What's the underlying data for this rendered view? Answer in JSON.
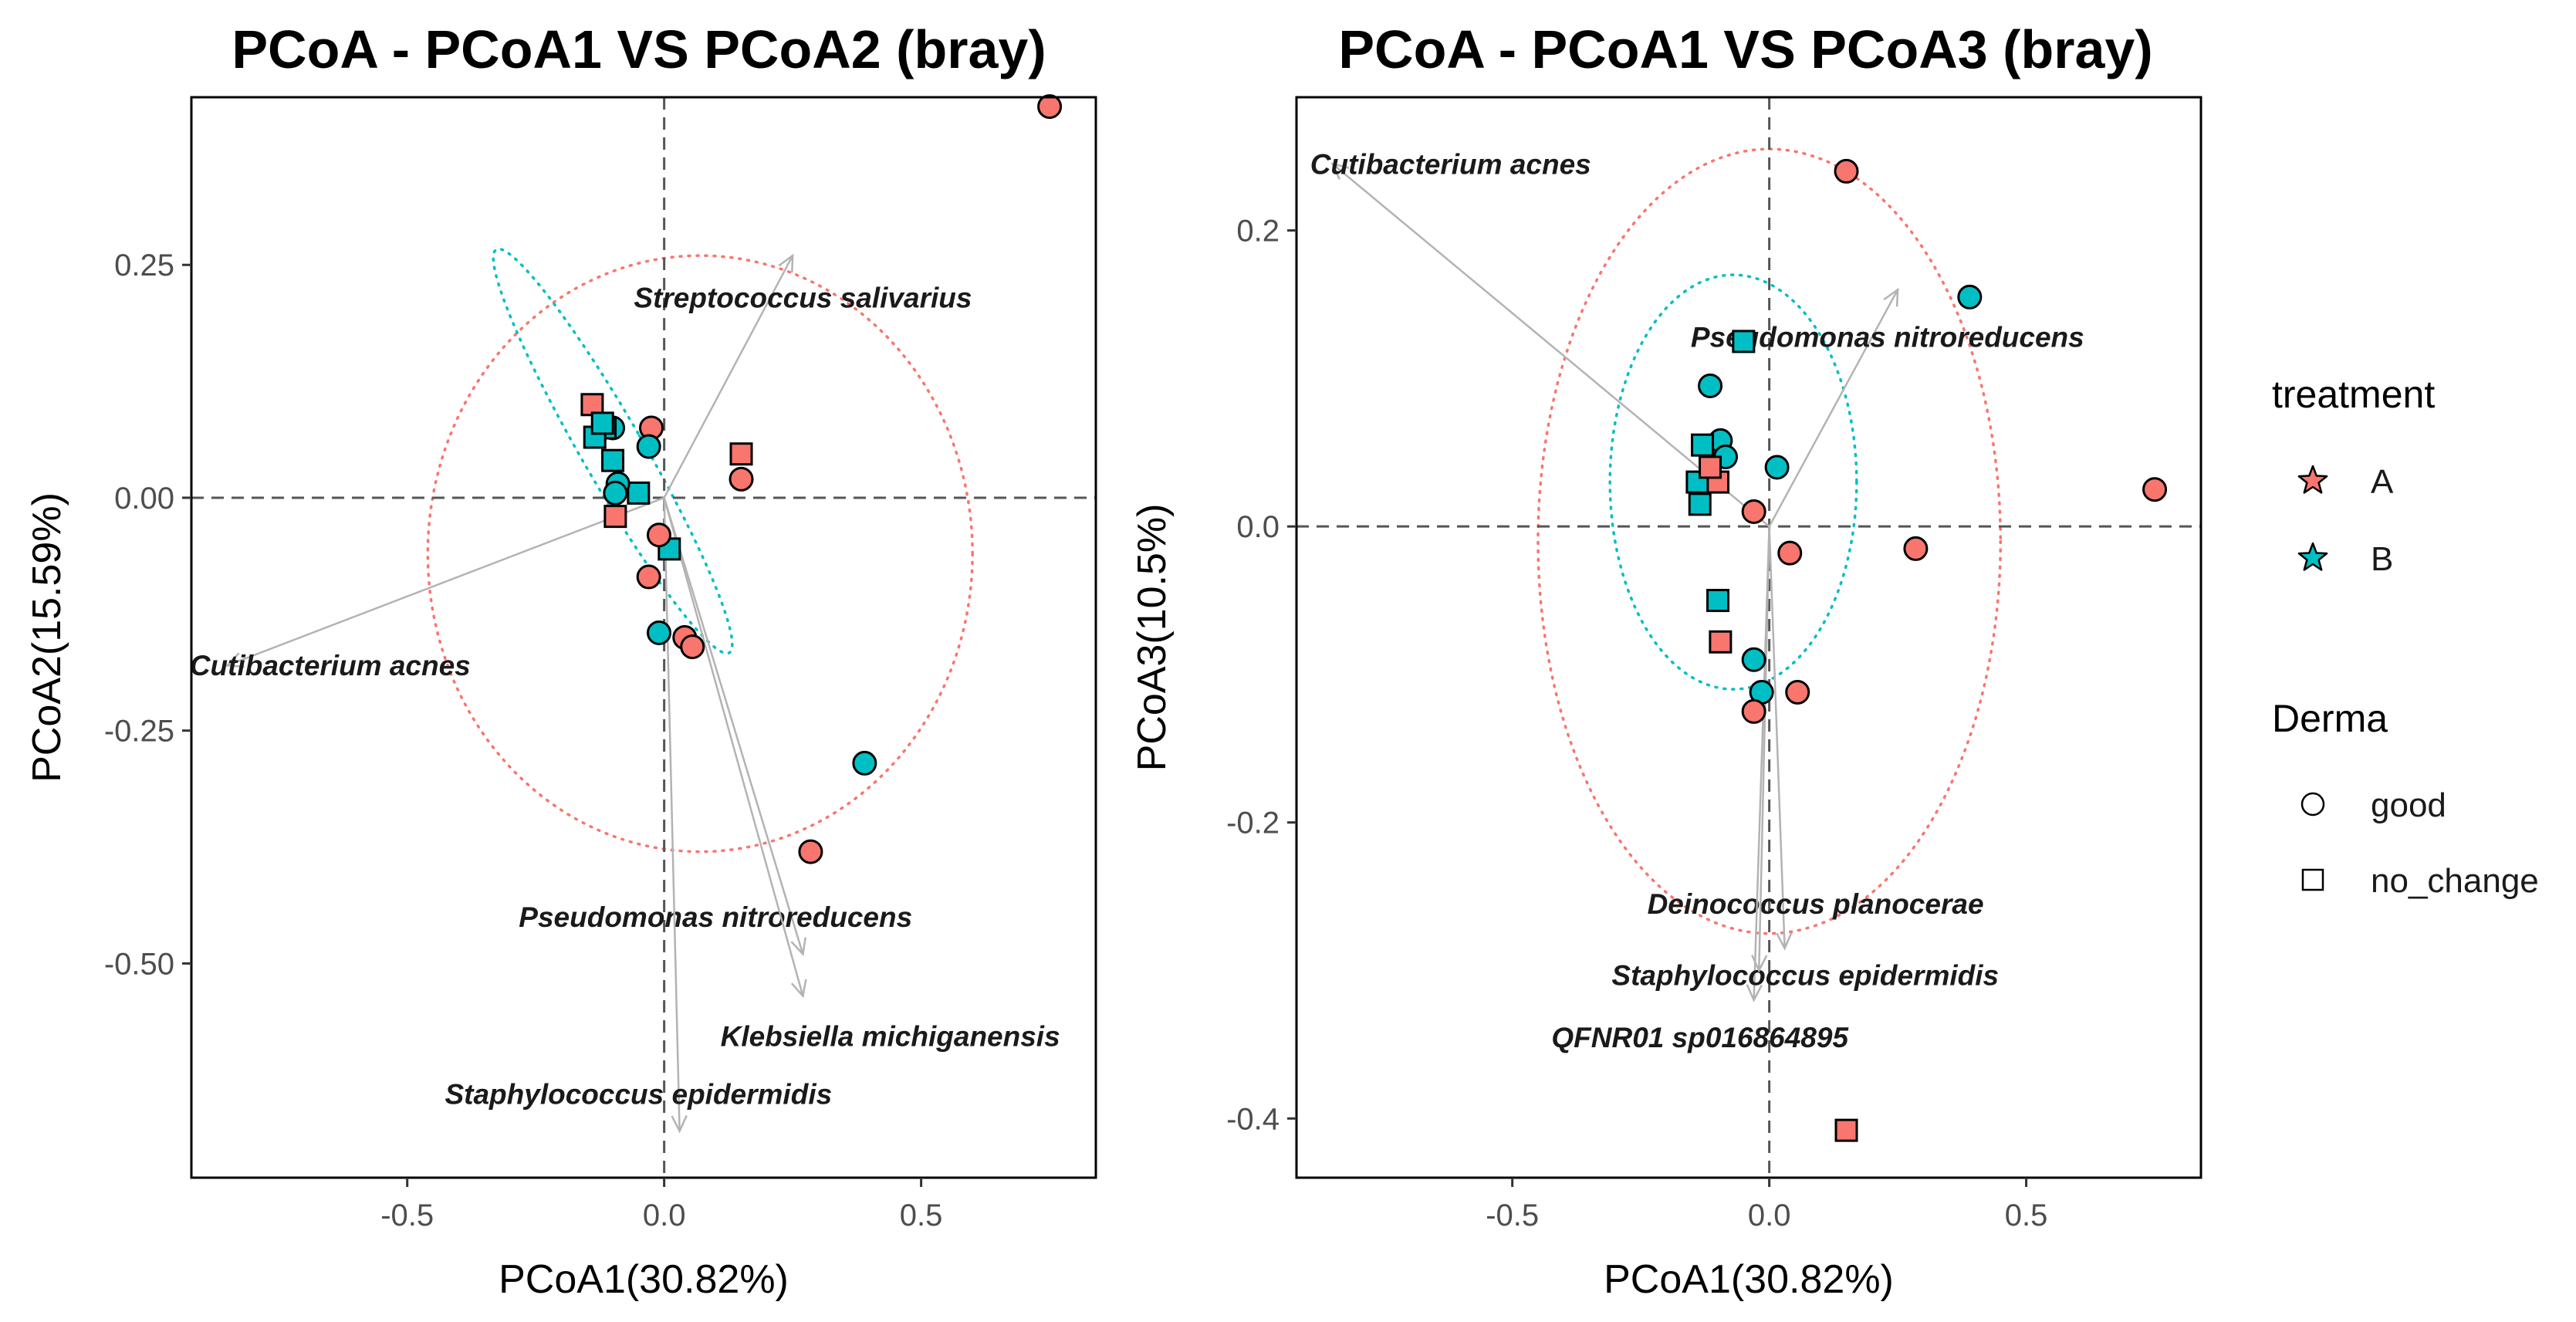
{
  "colors": {
    "A": "#F8766D",
    "B": "#00BFC4",
    "arrow": "#b3b3b3",
    "zero_line": "#555555"
  },
  "chart_data": [
    {
      "type": "scatter",
      "title": "PCoA - PCoA1 VS PCoA2 (bray)",
      "xlabel": "PCoA1(30.82%)",
      "ylabel": "PCoA2(15.59%)",
      "xlim": [
        -0.92,
        0.84
      ],
      "ylim": [
        -0.73,
        0.43
      ],
      "xticks": [
        {
          "v": -0.5,
          "label": "-0.5"
        },
        {
          "v": 0.0,
          "label": "0.0"
        },
        {
          "v": 0.5,
          "label": "0.5"
        }
      ],
      "yticks": [
        {
          "v": 0.25,
          "label": "0.25"
        },
        {
          "v": 0.0,
          "label": "0.00"
        },
        {
          "v": -0.25,
          "label": "-0.25"
        },
        {
          "v": -0.5,
          "label": "-0.50"
        }
      ],
      "points": [
        {
          "x": 0.75,
          "y": 0.42,
          "treatment": "A",
          "derma": "good"
        },
        {
          "x": 0.39,
          "y": -0.285,
          "treatment": "B",
          "derma": "good"
        },
        {
          "x": 0.285,
          "y": -0.38,
          "treatment": "A",
          "derma": "good"
        },
        {
          "x": 0.15,
          "y": 0.047,
          "treatment": "A",
          "derma": "no_change"
        },
        {
          "x": 0.15,
          "y": 0.02,
          "treatment": "A",
          "derma": "good"
        },
        {
          "x": 0.04,
          "y": -0.15,
          "treatment": "A",
          "derma": "good"
        },
        {
          "x": 0.055,
          "y": -0.16,
          "treatment": "A",
          "derma": "good"
        },
        {
          "x": 0.01,
          "y": -0.055,
          "treatment": "B",
          "derma": "no_change"
        },
        {
          "x": -0.01,
          "y": -0.04,
          "treatment": "A",
          "derma": "good"
        },
        {
          "x": -0.01,
          "y": -0.145,
          "treatment": "B",
          "derma": "good"
        },
        {
          "x": -0.03,
          "y": -0.085,
          "treatment": "A",
          "derma": "good"
        },
        {
          "x": -0.025,
          "y": 0.075,
          "treatment": "A",
          "derma": "good"
        },
        {
          "x": -0.03,
          "y": 0.055,
          "treatment": "B",
          "derma": "good"
        },
        {
          "x": -0.05,
          "y": 0.005,
          "treatment": "B",
          "derma": "no_change"
        },
        {
          "x": -0.1,
          "y": 0.04,
          "treatment": "B",
          "derma": "no_change"
        },
        {
          "x": -0.1,
          "y": 0.075,
          "treatment": "B",
          "derma": "good"
        },
        {
          "x": -0.09,
          "y": 0.015,
          "treatment": "B",
          "derma": "good"
        },
        {
          "x": -0.095,
          "y": -0.02,
          "treatment": "A",
          "derma": "no_change"
        },
        {
          "x": -0.095,
          "y": 0.005,
          "treatment": "B",
          "derma": "good"
        },
        {
          "x": -0.115,
          "y": 0.075,
          "treatment": "B",
          "derma": "no_change"
        },
        {
          "x": -0.14,
          "y": 0.1,
          "treatment": "A",
          "derma": "no_change"
        },
        {
          "x": -0.135,
          "y": 0.065,
          "treatment": "B",
          "derma": "no_change"
        },
        {
          "x": -0.12,
          "y": 0.08,
          "treatment": "B",
          "derma": "no_change"
        }
      ],
      "arrows": [
        {
          "label": "Streptococcus salivarius",
          "x": 0.25,
          "y": 0.26,
          "lx": 0.27,
          "ly": 0.215
        },
        {
          "label": "Cutibacterium acnes",
          "x": -0.85,
          "y": -0.18,
          "lx": -0.65,
          "ly": -0.18
        },
        {
          "label": "Pseudomonas nitroreducens",
          "x": 0.27,
          "y": -0.49,
          "lx": 0.1,
          "ly": -0.45
        },
        {
          "label": "Klebsiella michiganensis",
          "x": 0.27,
          "y": -0.535,
          "lx": 0.44,
          "ly": -0.578
        },
        {
          "label": "Staphylococcus epidermidis",
          "x": 0.03,
          "y": -0.68,
          "lx": -0.05,
          "ly": -0.64
        }
      ],
      "ellipses": [
        {
          "group": "A",
          "cx": 0.07,
          "cy": -0.06,
          "rx": 0.53,
          "ry": 0.32,
          "angle": 0
        },
        {
          "group": "B",
          "cx": -0.1,
          "cy": 0.05,
          "rx": 0.06,
          "ry": 0.25,
          "angle": -30
        }
      ]
    },
    {
      "type": "scatter",
      "title": "PCoA - PCoA1 VS PCoA3 (bray)",
      "xlabel": "PCoA1(30.82%)",
      "ylabel": "PCoA3(10.5%)",
      "xlim": [
        -0.92,
        0.84
      ],
      "ylim": [
        -0.44,
        0.29
      ],
      "xticks": [
        {
          "v": -0.5,
          "label": "-0.5"
        },
        {
          "v": 0.0,
          "label": "0.0"
        },
        {
          "v": 0.5,
          "label": "0.5"
        }
      ],
      "yticks": [
        {
          "v": 0.2,
          "label": "0.2"
        },
        {
          "v": 0.0,
          "label": "0.0"
        },
        {
          "v": -0.2,
          "label": "-0.2"
        },
        {
          "v": -0.4,
          "label": "-0.4"
        }
      ],
      "points": [
        {
          "x": 0.15,
          "y": 0.24,
          "treatment": "A",
          "derma": "good"
        },
        {
          "x": 0.39,
          "y": 0.155,
          "treatment": "B",
          "derma": "good"
        },
        {
          "x": 0.75,
          "y": 0.025,
          "treatment": "A",
          "derma": "good"
        },
        {
          "x": 0.285,
          "y": -0.015,
          "treatment": "A",
          "derma": "good"
        },
        {
          "x": 0.04,
          "y": -0.018,
          "treatment": "A",
          "derma": "good"
        },
        {
          "x": 0.015,
          "y": 0.04,
          "treatment": "B",
          "derma": "good"
        },
        {
          "x": 0.055,
          "y": -0.112,
          "treatment": "A",
          "derma": "good"
        },
        {
          "x": -0.015,
          "y": -0.112,
          "treatment": "B",
          "derma": "good"
        },
        {
          "x": -0.03,
          "y": -0.125,
          "treatment": "A",
          "derma": "good"
        },
        {
          "x": -0.03,
          "y": -0.09,
          "treatment": "B",
          "derma": "good"
        },
        {
          "x": -0.03,
          "y": 0.01,
          "treatment": "A",
          "derma": "good"
        },
        {
          "x": -0.05,
          "y": 0.125,
          "treatment": "B",
          "derma": "no_change"
        },
        {
          "x": -0.115,
          "y": 0.095,
          "treatment": "B",
          "derma": "good"
        },
        {
          "x": -0.095,
          "y": 0.058,
          "treatment": "B",
          "derma": "good"
        },
        {
          "x": -0.085,
          "y": 0.047,
          "treatment": "B",
          "derma": "good"
        },
        {
          "x": -0.1,
          "y": -0.05,
          "treatment": "B",
          "derma": "no_change"
        },
        {
          "x": -0.095,
          "y": -0.078,
          "treatment": "A",
          "derma": "no_change"
        },
        {
          "x": -0.12,
          "y": 0.03,
          "treatment": "A",
          "derma": "good"
        },
        {
          "x": -0.1,
          "y": 0.03,
          "treatment": "A",
          "derma": "no_change"
        },
        {
          "x": -0.13,
          "y": 0.055,
          "treatment": "B",
          "derma": "no_change"
        },
        {
          "x": -0.14,
          "y": 0.03,
          "treatment": "B",
          "derma": "no_change"
        },
        {
          "x": -0.135,
          "y": 0.015,
          "treatment": "B",
          "derma": "no_change"
        },
        {
          "x": -0.115,
          "y": 0.04,
          "treatment": "A",
          "derma": "no_change"
        },
        {
          "x": 0.15,
          "y": -0.408,
          "treatment": "A",
          "derma": "no_change"
        }
      ],
      "arrows": [
        {
          "label": "Cutibacterium acnes",
          "x": -0.85,
          "y": 0.245,
          "lx": -0.62,
          "ly": 0.245
        },
        {
          "label": "Pseudomonas nitroreducens",
          "x": 0.25,
          "y": 0.16,
          "lx": 0.23,
          "ly": 0.128
        },
        {
          "label": "Deinococcus planocerae",
          "x": 0.03,
          "y": -0.285,
          "lx": 0.09,
          "ly": -0.255
        },
        {
          "label": "Staphylococcus epidermidis",
          "x": -0.03,
          "y": -0.32,
          "lx": 0.07,
          "ly": -0.303
        },
        {
          "label": "QFNR01 sp016864895",
          "x": -0.02,
          "y": -0.3,
          "lx": -0.135,
          "ly": -0.345
        }
      ],
      "ellipses": [
        {
          "group": "A",
          "cx": 0.0,
          "cy": -0.01,
          "rx": 0.45,
          "ry": 0.265,
          "angle": 0
        },
        {
          "group": "B",
          "cx": -0.07,
          "cy": 0.03,
          "rx": 0.24,
          "ry": 0.14,
          "angle": 0
        }
      ]
    }
  ],
  "legend": {
    "treatment_title": "treatment",
    "treatment_items": [
      {
        "label": "A",
        "key": "A"
      },
      {
        "label": "B",
        "key": "B"
      }
    ],
    "derma_title": "Derma",
    "derma_items": [
      {
        "label": "good",
        "shape": "circle"
      },
      {
        "label": "no_change",
        "shape": "square"
      }
    ]
  }
}
